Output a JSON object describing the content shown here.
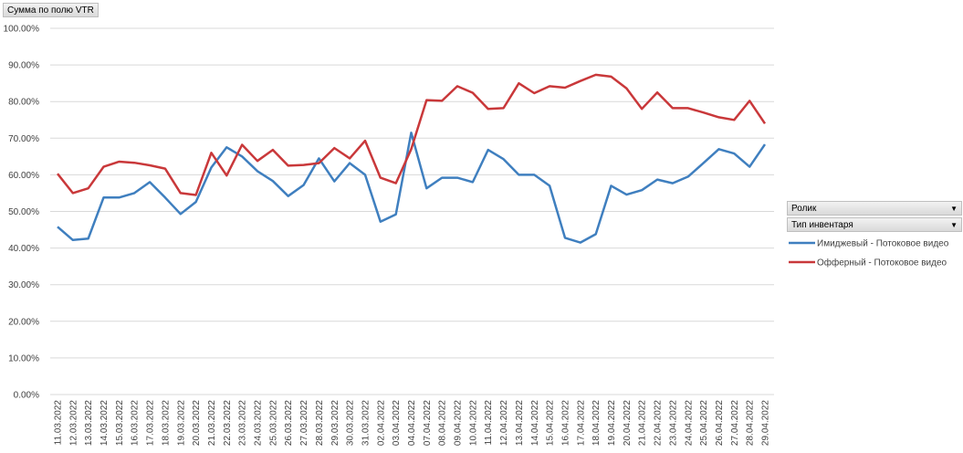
{
  "chart_data": {
    "type": "line",
    "value_field_button": "Сумма по полю VTR",
    "filter_buttons": [
      "Ролик",
      "Тип инвентаря"
    ],
    "categories": [
      "11.03.2022",
      "12.03.2022",
      "13.03.2022",
      "14.03.2022",
      "15.03.2022",
      "16.03.2022",
      "17.03.2022",
      "18.03.2022",
      "19.03.2022",
      "20.03.2022",
      "21.03.2022",
      "22.03.2022",
      "23.03.2022",
      "24.03.2022",
      "25.03.2022",
      "26.03.2022",
      "27.03.2022",
      "28.03.2022",
      "29.03.2022",
      "30.03.2022",
      "31.03.2022",
      "02.04.2022",
      "03.04.2022",
      "04.04.2022",
      "07.04.2022",
      "08.04.2022",
      "09.04.2022",
      "10.04.2022",
      "11.04.2022",
      "12.04.2022",
      "13.04.2022",
      "14.04.2022",
      "15.04.2022",
      "16.04.2022",
      "17.04.2022",
      "18.04.2022",
      "19.04.2022",
      "20.04.2022",
      "21.04.2022",
      "22.04.2022",
      "23.04.2022",
      "24.04.2022",
      "25.04.2022",
      "26.04.2022",
      "27.04.2022",
      "28.04.2022",
      "29.04.2022"
    ],
    "series": [
      {
        "name": "Имиджевый - Потоковое видео",
        "color": "#3f7fbf",
        "values": [
          45.8,
          42.2,
          42.6,
          53.8,
          53.8,
          55,
          58,
          53.8,
          49.3,
          52.6,
          62,
          67.5,
          65,
          61,
          58.3,
          54.2,
          57.2,
          64.5,
          58.2,
          63.2,
          60,
          47.2,
          49.2,
          71.5,
          56.3,
          59.2,
          59.2,
          58,
          66.8,
          64.3,
          60,
          60,
          57,
          42.8,
          41.5,
          43.8,
          57,
          54.6,
          55.8,
          58.7,
          57.7,
          59.5,
          63.2,
          67,
          65.8,
          62.2,
          68.3
        ]
      },
      {
        "name": "Офферный - Потоковое видео",
        "color": "#c9383a",
        "values": [
          60.3,
          55,
          56.3,
          62.2,
          63.6,
          63.3,
          62.6,
          61.7,
          55,
          54.5,
          66,
          59.8,
          68.2,
          63.8,
          66.8,
          62.5,
          62.7,
          63.2,
          67.3,
          64.5,
          69.3,
          59.2,
          57.7,
          67,
          80.4,
          80.2,
          84.2,
          82.4,
          78,
          78.2,
          85,
          82.3,
          84.2,
          83.8,
          85.6,
          87.3,
          86.8,
          83.6,
          78,
          82.5,
          78.2,
          78.2,
          77,
          75.7,
          75,
          80.2,
          74
        ]
      }
    ],
    "ylim": [
      0,
      100
    ],
    "yticks": [
      {
        "value": 0,
        "label": "0.00%"
      },
      {
        "value": 10,
        "label": "10.00%"
      },
      {
        "value": 20,
        "label": "20.00%"
      },
      {
        "value": 30,
        "label": "30.00%"
      },
      {
        "value": 40,
        "label": "40.00%"
      },
      {
        "value": 50,
        "label": "50.00%"
      },
      {
        "value": 60,
        "label": "60.00%"
      },
      {
        "value": 70,
        "label": "70.00%"
      },
      {
        "value": 80,
        "label": "80.00%"
      },
      {
        "value": 90,
        "label": "90.00%"
      },
      {
        "value": 100,
        "label": "100.00%"
      }
    ],
    "grid": true
  }
}
